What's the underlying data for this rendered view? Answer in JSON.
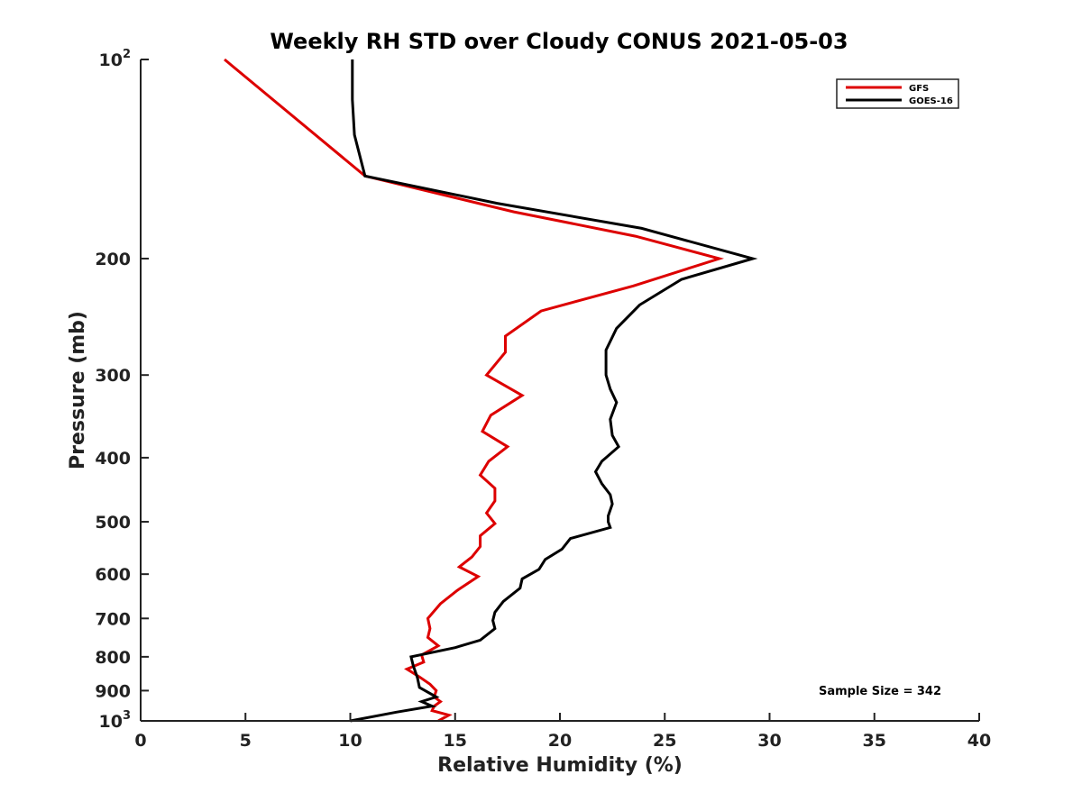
{
  "chart_data": {
    "type": "line",
    "title": "Weekly RH STD over Cloudy CONUS 2021-05-03",
    "xlabel": "Relative Humidity (%)",
    "ylabel": "Pressure (mb)",
    "xlim": [
      0,
      40
    ],
    "ylim": [
      100,
      1000
    ],
    "y_scale": "log",
    "y_reversed": true,
    "grid": false,
    "legend_position": "top-right",
    "x_ticks": [
      "0",
      "5",
      "10",
      "15",
      "20",
      "25",
      "30",
      "35",
      "40"
    ],
    "x_tick_values": [
      0,
      5,
      10,
      15,
      20,
      25,
      30,
      35,
      40
    ],
    "y_ticks": [
      {
        "value": 100,
        "base": "10",
        "exp": "2"
      },
      {
        "value": 200,
        "base": "200",
        "exp": ""
      },
      {
        "value": 300,
        "base": "300",
        "exp": ""
      },
      {
        "value": 400,
        "base": "400",
        "exp": ""
      },
      {
        "value": 500,
        "base": "500",
        "exp": ""
      },
      {
        "value": 600,
        "base": "600",
        "exp": ""
      },
      {
        "value": 700,
        "base": "700",
        "exp": ""
      },
      {
        "value": 800,
        "base": "800",
        "exp": ""
      },
      {
        "value": 900,
        "base": "900",
        "exp": ""
      },
      {
        "value": 1000,
        "base": "10",
        "exp": "3"
      }
    ],
    "annotation": "Sample Size = 342",
    "series": [
      {
        "name": "GFS",
        "color": "#dd0000",
        "x": [
          4.0,
          10.7,
          17.8,
          23.6,
          27.6,
          23.5,
          19.1,
          17.4,
          17.4,
          16.5,
          18.2,
          16.7,
          16.3,
          17.5,
          16.6,
          16.2,
          16.9,
          16.9,
          16.5,
          16.9,
          16.2,
          16.2,
          15.8,
          15.2,
          16.1,
          15.1,
          14.3,
          13.7,
          13.8,
          13.7,
          14.2,
          13.4,
          13.5,
          12.7,
          13.3,
          13.8,
          14.1,
          14.0,
          14.3,
          14.0,
          13.9,
          14.7,
          14.2
        ],
        "y": [
          100,
          150,
          170,
          185,
          200,
          220,
          240,
          262,
          277,
          300,
          322,
          345,
          365,
          385,
          405,
          425,
          445,
          465,
          485,
          503,
          525,
          545,
          565,
          585,
          605,
          635,
          665,
          700,
          725,
          748,
          770,
          795,
          815,
          835,
          858,
          880,
          900,
          920,
          935,
          950,
          965,
          980,
          1000
        ]
      },
      {
        "name": "GOES-16",
        "color": "#000000",
        "x": [
          10.1,
          10.1,
          10.2,
          10.7,
          17.0,
          23.9,
          29.2,
          25.8,
          23.8,
          22.7,
          22.2,
          22.2,
          22.4,
          22.7,
          22.4,
          22.5,
          22.8,
          22.0,
          21.7,
          22.0,
          22.4,
          22.5,
          22.3,
          22.3,
          22.4,
          20.5,
          20.1,
          19.3,
          19.0,
          18.2,
          18.1,
          17.3,
          16.9,
          16.8,
          16.9,
          16.2,
          15.0,
          12.9,
          13.0,
          13.2,
          13.3,
          14.1,
          13.4,
          13.9,
          12.2,
          10.0
        ],
        "y": [
          100,
          115,
          130,
          150,
          165,
          180,
          200,
          215,
          235,
          255,
          275,
          300,
          315,
          330,
          350,
          370,
          385,
          405,
          420,
          438,
          455,
          470,
          490,
          500,
          510,
          530,
          550,
          570,
          590,
          610,
          630,
          660,
          685,
          705,
          725,
          755,
          775,
          800,
          825,
          860,
          890,
          920,
          935,
          950,
          970,
          1000
        ]
      }
    ]
  }
}
